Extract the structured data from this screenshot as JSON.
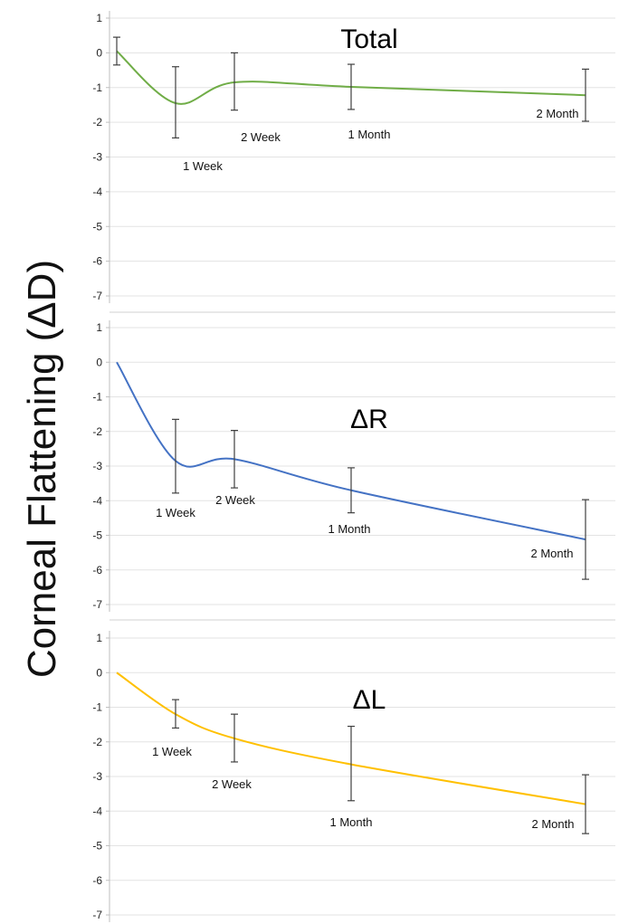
{
  "figure": {
    "ylabel": "Corneal Flattening (ΔD)"
  },
  "colors": {
    "grid": "#e3e3e3",
    "axis": "#bfbfbf",
    "error_bar": "#404040"
  },
  "chart_data": [
    {
      "type": "line",
      "title": "Total",
      "ylim": [
        -7,
        1
      ],
      "yticks": [
        1,
        0,
        -1,
        -2,
        -3,
        -4,
        -5,
        -6,
        -7
      ],
      "grid": true,
      "color": "#70ad47",
      "smooth": true,
      "points": [
        {
          "label": "",
          "y": 0.05,
          "err_low": 0.4,
          "err_high": 0.4
        },
        {
          "label": "1 Week",
          "y": -1.45,
          "err_low": 1.0,
          "err_high": 1.05
        },
        {
          "label": "2 Week",
          "y": -0.85,
          "err_low": 0.8,
          "err_high": 0.85
        },
        {
          "label": "1 Month",
          "y": -0.98,
          "err_low": 0.65,
          "err_high": 0.65
        },
        {
          "label": "2 Month",
          "y": -1.22,
          "err_low": 0.75,
          "err_high": 0.75
        }
      ]
    },
    {
      "type": "line",
      "title": "ΔR",
      "ylim": [
        -7,
        1
      ],
      "yticks": [
        1,
        0,
        -1,
        -2,
        -3,
        -4,
        -5,
        -6,
        -7
      ],
      "grid": true,
      "color": "#4472c4",
      "smooth": true,
      "points": [
        {
          "label": "",
          "y": 0.0,
          "err_low": 0,
          "err_high": 0
        },
        {
          "label": "1 Week",
          "y": -2.85,
          "err_low": 0.93,
          "err_high": 1.2
        },
        {
          "label": "2 Week",
          "y": -2.8,
          "err_low": 0.83,
          "err_high": 0.83
        },
        {
          "label": "1 Month",
          "y": -3.7,
          "err_low": 0.65,
          "err_high": 0.65
        },
        {
          "label": "2 Month",
          "y": -5.12,
          "err_low": 1.15,
          "err_high": 1.15
        }
      ]
    },
    {
      "type": "line",
      "title": "ΔL",
      "ylim": [
        -7,
        1
      ],
      "yticks": [
        1,
        0,
        -1,
        -2,
        -3,
        -4,
        -5,
        -6,
        -7
      ],
      "grid": true,
      "color": "#ffc000",
      "smooth": true,
      "points": [
        {
          "label": "",
          "y": 0.0,
          "err_low": 0,
          "err_high": 0
        },
        {
          "label": "1 Week",
          "y": -1.2,
          "err_low": 0.4,
          "err_high": 0.42
        },
        {
          "label": "2 Week",
          "y": -1.9,
          "err_low": 0.68,
          "err_high": 0.7
        },
        {
          "label": "1 Month",
          "y": -2.65,
          "err_low": 1.05,
          "err_high": 1.1
        },
        {
          "label": "2 Month",
          "y": -3.8,
          "err_low": 0.85,
          "err_high": 0.85
        }
      ]
    }
  ]
}
